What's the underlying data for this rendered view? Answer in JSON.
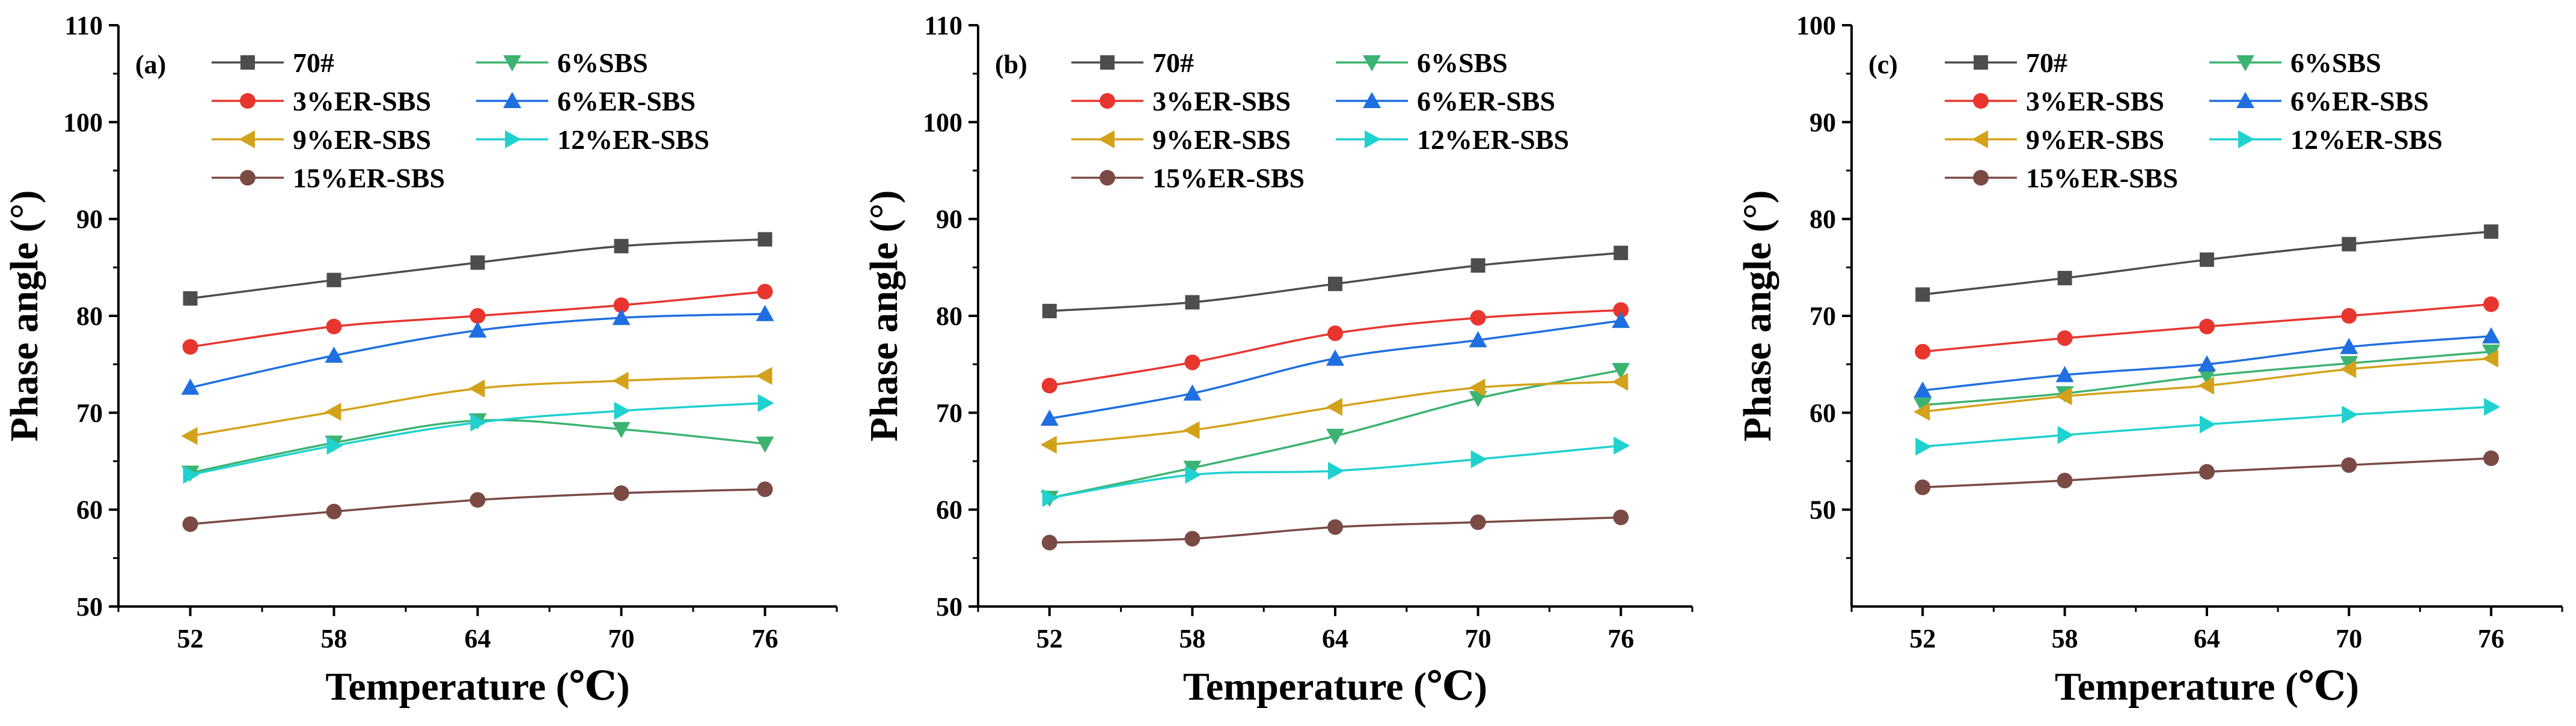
{
  "colors": {
    "70#": "#4d4d4d",
    "6%SBS": "#3cb371",
    "3%ER-SBS": "#e8352e",
    "6%ER-SBS": "#1f6fe0",
    "9%ER-SBS": "#d4a21a",
    "12%ER-SBS": "#1fd1cf",
    "15%ER-SBS": "#7a4a45"
  },
  "markers": {
    "70#": "square",
    "6%SBS": "triangle-down",
    "3%ER-SBS": "circle",
    "6%ER-SBS": "triangle-up",
    "9%ER-SBS": "triangle-left",
    "12%ER-SBS": "triangle-right",
    "15%ER-SBS": "circle"
  },
  "chart_data": [
    {
      "type": "line",
      "panel_label": "(a)",
      "xlabel": "Temperature (℃)",
      "ylabel": "Phase angle (°)",
      "x": [
        52,
        58,
        64,
        70,
        76
      ],
      "ylim": [
        50,
        110
      ],
      "yticks": [
        50,
        60,
        70,
        80,
        90,
        100,
        110
      ],
      "legend": [
        "70#",
        "6%SBS",
        "3%ER-SBS",
        "6%ER-SBS",
        "9%ER-SBS",
        "12%ER-SBS",
        "15%ER-SBS"
      ],
      "series": [
        {
          "name": "70#",
          "values": [
            81.8,
            83.7,
            85.5,
            87.2,
            87.9
          ]
        },
        {
          "name": "6%SBS",
          "values": [
            63.8,
            66.9,
            69.2,
            68.3,
            66.8
          ]
        },
        {
          "name": "3%ER-SBS",
          "values": [
            76.8,
            78.9,
            80.0,
            81.1,
            82.5
          ]
        },
        {
          "name": "6%ER-SBS",
          "values": [
            72.6,
            75.9,
            78.5,
            79.8,
            80.2
          ]
        },
        {
          "name": "9%ER-SBS",
          "values": [
            67.6,
            70.1,
            72.5,
            73.3,
            73.8
          ]
        },
        {
          "name": "12%ER-SBS",
          "values": [
            63.6,
            66.6,
            69.0,
            70.2,
            71.0
          ]
        },
        {
          "name": "15%ER-SBS",
          "values": [
            58.5,
            59.8,
            61.0,
            61.7,
            62.1
          ]
        }
      ]
    },
    {
      "type": "line",
      "panel_label": "(b)",
      "xlabel": "Temperature (℃)",
      "ylabel": "Phase angle (°)",
      "x": [
        52,
        58,
        64,
        70,
        76
      ],
      "ylim": [
        50,
        110
      ],
      "yticks": [
        50,
        60,
        70,
        80,
        90,
        100,
        110
      ],
      "legend": [
        "70#",
        "6%SBS",
        "3%ER-SBS",
        "6%ER-SBS",
        "9%ER-SBS",
        "12%ER-SBS",
        "15%ER-SBS"
      ],
      "series": [
        {
          "name": "70#",
          "values": [
            80.5,
            81.4,
            83.3,
            85.2,
            86.5
          ]
        },
        {
          "name": "6%SBS",
          "values": [
            61.2,
            64.3,
            67.6,
            71.5,
            74.4
          ]
        },
        {
          "name": "3%ER-SBS",
          "values": [
            72.8,
            75.2,
            78.2,
            79.8,
            80.6
          ]
        },
        {
          "name": "6%ER-SBS",
          "values": [
            69.4,
            72.0,
            75.6,
            77.5,
            79.5
          ]
        },
        {
          "name": "9%ER-SBS",
          "values": [
            66.7,
            68.2,
            70.6,
            72.6,
            73.2
          ]
        },
        {
          "name": "12%ER-SBS",
          "values": [
            61.2,
            63.6,
            64.0,
            65.2,
            66.6
          ]
        },
        {
          "name": "15%ER-SBS",
          "values": [
            56.6,
            57.0,
            58.2,
            58.7,
            59.2
          ]
        }
      ]
    },
    {
      "type": "line",
      "panel_label": "(c)",
      "xlabel": "Temperature (℃)",
      "ylabel": "Phase angle (°)",
      "x": [
        52,
        58,
        64,
        70,
        76
      ],
      "ylim": [
        40,
        100
      ],
      "yticks": [
        50,
        60,
        70,
        80,
        90,
        100
      ],
      "legend": [
        "70#",
        "6%SBS",
        "3%ER-SBS",
        "6%ER-SBS",
        "9%ER-SBS",
        "12%ER-SBS",
        "15%ER-SBS"
      ],
      "series": [
        {
          "name": "70#",
          "values": [
            72.2,
            73.9,
            75.8,
            77.4,
            78.7
          ]
        },
        {
          "name": "6%SBS",
          "values": [
            60.8,
            62.0,
            63.8,
            65.1,
            66.3
          ]
        },
        {
          "name": "3%ER-SBS",
          "values": [
            66.3,
            67.7,
            68.9,
            70.0,
            71.2
          ]
        },
        {
          "name": "6%ER-SBS",
          "values": [
            62.3,
            63.9,
            65.0,
            66.8,
            67.9
          ]
        },
        {
          "name": "9%ER-SBS",
          "values": [
            60.1,
            61.7,
            62.8,
            64.5,
            65.6
          ]
        },
        {
          "name": "12%ER-SBS",
          "values": [
            56.5,
            57.7,
            58.8,
            59.8,
            60.6
          ]
        },
        {
          "name": "15%ER-SBS",
          "values": [
            52.3,
            53.0,
            53.9,
            54.6,
            55.3
          ]
        }
      ]
    }
  ]
}
